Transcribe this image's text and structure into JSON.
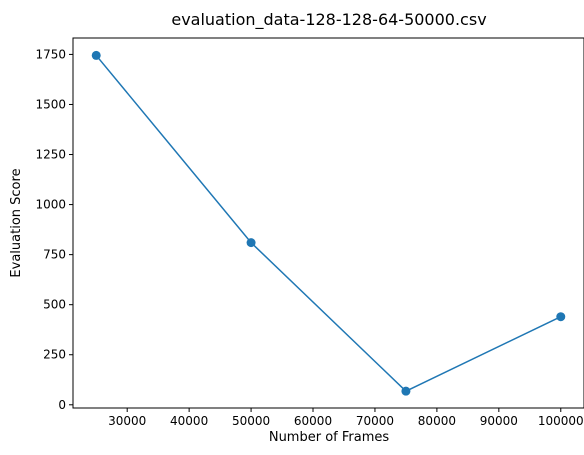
{
  "chart_data": {
    "type": "line",
    "title": "evaluation_data-128-128-64-50000.csv",
    "xlabel": "Number of Frames",
    "ylabel": "Evaluation Score",
    "x": [
      25000,
      50000,
      75000,
      100000
    ],
    "series": [
      {
        "values": [
          1745,
          810,
          68,
          440
        ],
        "color": "#1f77b4",
        "marker": "circle"
      }
    ],
    "xlim": [
      21250,
      103750
    ],
    "ylim": [
      -16,
      1832
    ],
    "xticks": [
      30000,
      40000,
      50000,
      60000,
      70000,
      80000,
      90000,
      100000
    ],
    "xtick_labels": [
      "30000",
      "40000",
      "50000",
      "60000",
      "70000",
      "80000",
      "90000",
      "100000"
    ],
    "yticks": [
      0,
      250,
      500,
      750,
      1000,
      1250,
      1500,
      1750
    ],
    "ytick_labels": [
      "0",
      "250",
      "500",
      "750",
      "1000",
      "1250",
      "1500",
      "1750"
    ],
    "grid": false,
    "legend": "none"
  }
}
